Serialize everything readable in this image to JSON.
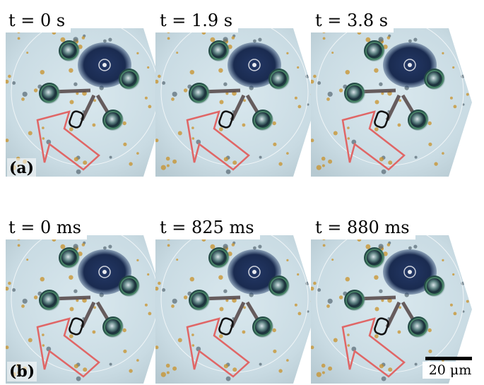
{
  "figure": {
    "row_a": {
      "label": "(a)",
      "frames": [
        {
          "time": "t = 0 s"
        },
        {
          "time": "t = 1.9 s"
        },
        {
          "time": "t = 3.8 s"
        }
      ]
    },
    "row_b": {
      "label": "(b)",
      "frames": [
        {
          "time": "t = 0 ms"
        },
        {
          "time": "t = 825 ms"
        },
        {
          "time": "t = 880 ms"
        }
      ]
    },
    "scale_bar": {
      "label": "20 μm"
    },
    "colors": {
      "background": "#cfe0e8",
      "arrow": "#e06666",
      "cell": "#1e2f57",
      "trap_ring": "#4d8a6a",
      "particle": "#c8922a"
    }
  }
}
